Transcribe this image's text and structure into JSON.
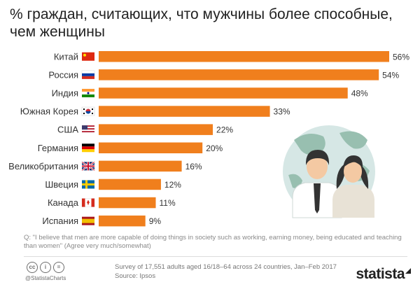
{
  "title": "% граждан, считающих, что мужчины более способные, чем женщины",
  "question": "Q: \"I believe that men are more capable of doing things in society such as working, earning money, being educated and teaching than women\" (Agree very much/somewhat)",
  "footer": {
    "handle": "@StatistaCharts",
    "survey_line": "Survey of 17,551 adults aged 16/18–64 across 24 countries, Jan–Feb 2017",
    "source_line": "Source: Ipsos",
    "brand": "statista"
  },
  "colors": {
    "bar": "#f07f1d",
    "globe": "#d6e7e5",
    "land": "#98bfb0"
  },
  "chart_data": {
    "type": "bar",
    "orientation": "horizontal",
    "categories": [
      "Китай",
      "Россия",
      "Индия",
      "Южная Корея",
      "США",
      "Германия",
      "Великобритания",
      "Швеция",
      "Канада",
      "Испания"
    ],
    "values": [
      56,
      54,
      48,
      33,
      22,
      20,
      16,
      12,
      11,
      9
    ],
    "value_labels": [
      "56%",
      "54%",
      "48%",
      "33%",
      "22%",
      "20%",
      "16%",
      "12%",
      "11%",
      "9%"
    ],
    "flags": [
      "china-flag-icon",
      "russia-flag-icon",
      "india-flag-icon",
      "south-korea-flag-icon",
      "usa-flag-icon",
      "germany-flag-icon",
      "uk-flag-icon",
      "sweden-flag-icon",
      "canada-flag-icon",
      "spain-flag-icon"
    ],
    "xlim": [
      0,
      56
    ],
    "grid": false,
    "legend": "none"
  }
}
